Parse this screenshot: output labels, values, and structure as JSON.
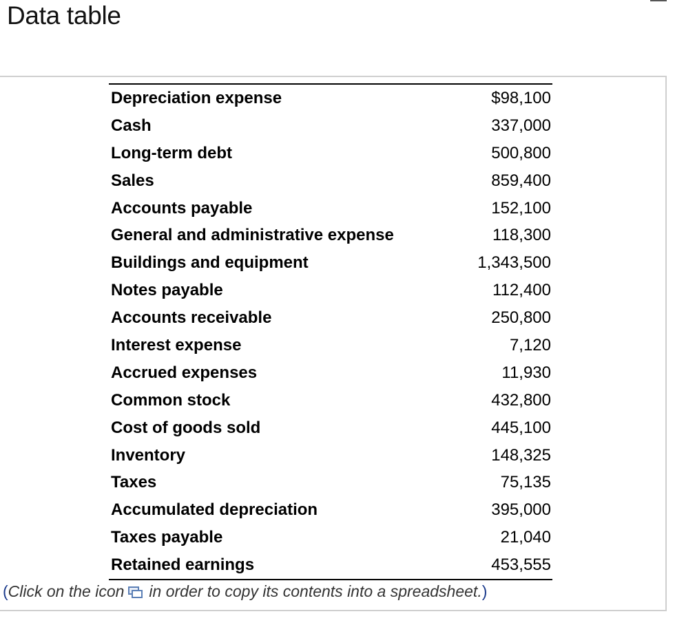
{
  "header": {
    "title": "Data table"
  },
  "table": {
    "rows": [
      {
        "label": "Depreciation expense",
        "value": "$98,100"
      },
      {
        "label": "Cash",
        "value": "337,000"
      },
      {
        "label": "Long-term debt",
        "value": "500,800"
      },
      {
        "label": "Sales",
        "value": "859,400"
      },
      {
        "label": "Accounts payable",
        "value": "152,100"
      },
      {
        "label": "General and administrative expense",
        "value": "118,300"
      },
      {
        "label": "Buildings and equipment",
        "value": "1,343,500"
      },
      {
        "label": "Notes payable",
        "value": "112,400"
      },
      {
        "label": "Accounts receivable",
        "value": "250,800"
      },
      {
        "label": "Interest expense",
        "value": "7,120"
      },
      {
        "label": "Accrued expenses",
        "value": "11,930"
      },
      {
        "label": "Common stock",
        "value": "432,800"
      },
      {
        "label": "Cost of goods sold",
        "value": "445,100"
      },
      {
        "label": "Inventory",
        "value": "148,325"
      },
      {
        "label": "Taxes",
        "value": "75,135"
      },
      {
        "label": "Accumulated depreciation",
        "value": "395,000"
      },
      {
        "label": "Taxes payable",
        "value": "21,040"
      },
      {
        "label": "Retained earnings",
        "value": "453,555"
      }
    ]
  },
  "footer": {
    "open_paren": "(",
    "note_before_icon": "Click on the icon",
    "icon": "copy-to-spreadsheet-icon",
    "note_after_icon": "in order to copy its contents into a spreadsheet.",
    "close_paren": ")"
  }
}
